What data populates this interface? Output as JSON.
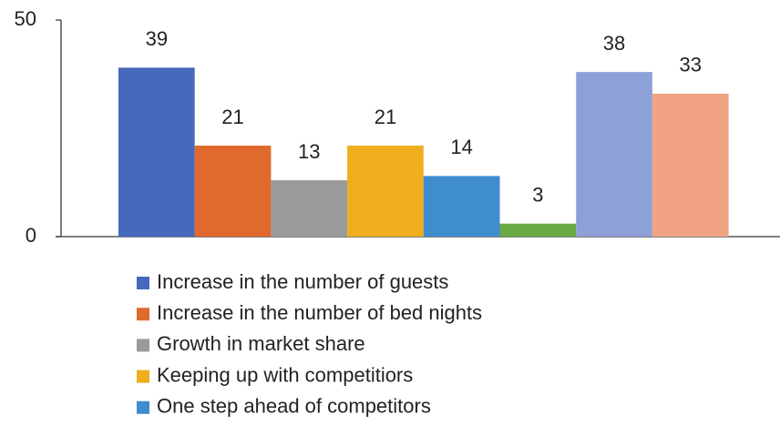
{
  "chart_data": {
    "type": "bar",
    "categories": [
      null
    ],
    "series": [
      {
        "name": "Increase in the number of guests",
        "color": "#4669bd",
        "values": [
          39
        ]
      },
      {
        "name": "Increase in the number of bed nights",
        "color": "#e0692d",
        "values": [
          21
        ]
      },
      {
        "name": "Growth in market share",
        "color": "#9a9a9a",
        "values": [
          13
        ]
      },
      {
        "name": "Keeping up with competitiors",
        "color": "#efae1c",
        "values": [
          21
        ]
      },
      {
        "name": "One step ahead of competitors",
        "color": "#3f8ccf",
        "values": [
          14
        ]
      },
      {
        "color": "#6aaa45",
        "values": [
          3
        ]
      },
      {
        "color": "#8da1d8",
        "values": [
          38
        ]
      },
      {
        "color": "#f1a384",
        "values": [
          33
        ]
      }
    ],
    "ylim": [
      0,
      50
    ],
    "yticks": [
      0,
      50
    ],
    "grid": false
  }
}
